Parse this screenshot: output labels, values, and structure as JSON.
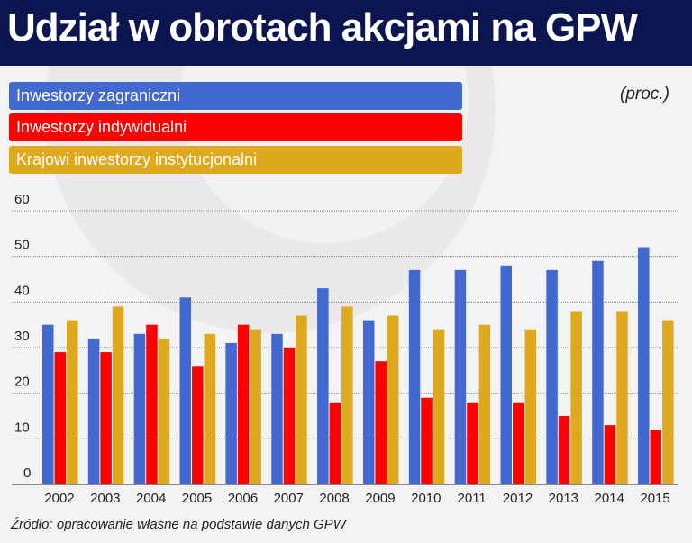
{
  "title": "Udział w obrotach akcjami na GPW",
  "unit": "(proc.)",
  "source": "Źródło: opracowanie własne na podstawie danych GPW",
  "chart_data": {
    "type": "bar",
    "title": "Udział w obrotach akcjami na GPW",
    "ylabel": "(proc.)",
    "xlabel": "",
    "ylim": [
      0,
      60
    ],
    "yticks": [
      0,
      10,
      20,
      30,
      40,
      50,
      60
    ],
    "grid": true,
    "legend_placement": "top-left",
    "categories": [
      "2002",
      "2003",
      "2004",
      "2005",
      "2006",
      "2007",
      "2008",
      "2009",
      "2010",
      "2011",
      "2012",
      "2013",
      "2014",
      "2015"
    ],
    "series": [
      {
        "name": "Inwestorzy zagraniczni",
        "color": "#4169cf",
        "values": [
          35,
          32,
          33,
          41,
          31,
          33,
          43,
          36,
          47,
          47,
          48,
          47,
          49,
          52
        ]
      },
      {
        "name": "Inwestorzy indywidualni",
        "color": "#fe0000",
        "values": [
          29,
          29,
          35,
          26,
          35,
          30,
          18,
          27,
          19,
          18,
          18,
          15,
          13,
          12
        ]
      },
      {
        "name": "Krajowi inwestorzy instytucjonalni",
        "color": "#dfa91f",
        "values": [
          36,
          39,
          32,
          33,
          34,
          37,
          39,
          37,
          34,
          35,
          34,
          38,
          38,
          36
        ]
      }
    ]
  }
}
